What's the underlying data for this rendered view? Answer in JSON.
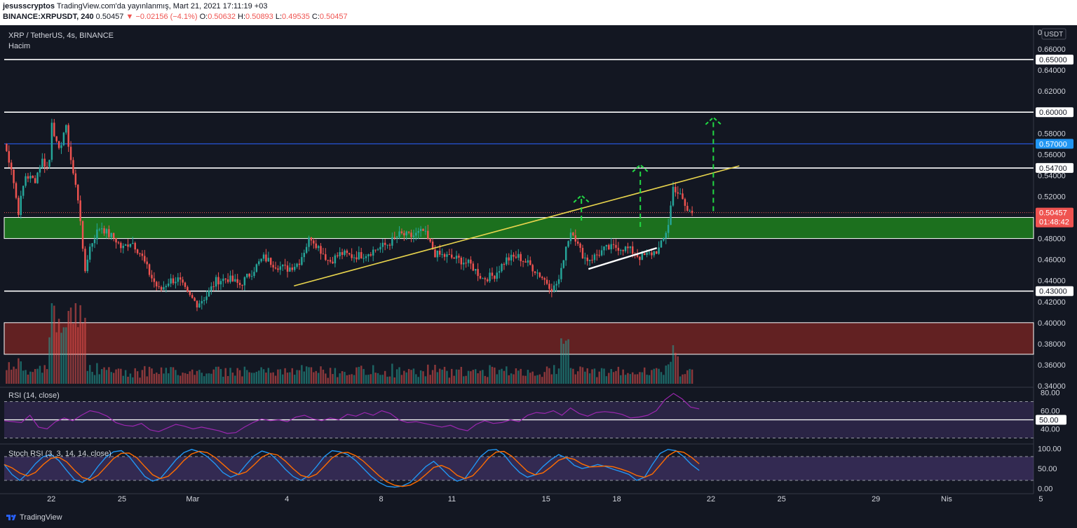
{
  "header": {
    "author": "jesusscryptos",
    "published": "TradingView.com'da yayınlanmış, Mart 21, 2021 17:11:19 +03",
    "symbol": "BINANCE:XRPUSDT, 240",
    "last": "0.50457",
    "arrow": "▼",
    "change": "−0.02156 (−4.1%)",
    "o_label": "O:",
    "o_value": "0.50632",
    "h_label": "H:",
    "h_value": "0.50893",
    "l_label": "L:",
    "l_value": "0.49535",
    "c_label": "C:",
    "c_value": "0.50457"
  },
  "legend": {
    "title": "XRP / TetherUS, 4s, BINANCE",
    "volume": "Hacim",
    "rsi": "RSI (14, close)",
    "stoch": "Stoch RSI (3, 3, 14, 14, close)"
  },
  "footer": {
    "brand": "TradingView"
  },
  "colors": {
    "up": "#26a69a",
    "down": "#ef5350",
    "trend": "#e8d44d",
    "target": "#21d943",
    "support_zone": "#1e7a1e",
    "resist_zone": "#6b2222",
    "blue_line": "#2962ff"
  },
  "chart_data": [
    {
      "type": "candlestick",
      "currency": "USDT",
      "ylim": [
        0.34,
        0.68
      ],
      "y_ticks": [
        "0.34000",
        "0.36000",
        "0.38000",
        "0.40000",
        "0.42000",
        "0.44000",
        "0.46000",
        "0.48000",
        "0.50000",
        "0.52000",
        "0.54000",
        "0.56000",
        "0.58000",
        "0.60000",
        "0.62000",
        "0.64000",
        "0.66000"
      ],
      "x_ticks": [
        {
          "label": "22",
          "day": 22
        },
        {
          "label": "25",
          "day": 25
        },
        {
          "label": "Mar",
          "day": 28
        },
        {
          "label": "4",
          "day": 32
        },
        {
          "label": "8",
          "day": 36
        },
        {
          "label": "11",
          "day": 39
        },
        {
          "label": "15",
          "day": 43
        },
        {
          "label": "18",
          "day": 46
        },
        {
          "label": "22",
          "day": 50
        },
        {
          "label": "25",
          "day": 53
        },
        {
          "label": "29",
          "day": 57
        },
        {
          "label": "Nis",
          "day": 60
        },
        {
          "label": "5",
          "day": 64
        }
      ],
      "horizontal_levels": [
        {
          "value": 0.65,
          "label": "0.65000",
          "color": "#ffffff"
        },
        {
          "value": 0.6,
          "label": "0.60000",
          "color": "#ffffff"
        },
        {
          "value": 0.57,
          "label": "0.57000",
          "color": "#2962ff"
        },
        {
          "value": 0.547,
          "label": "0.54700",
          "color": "#ffffff"
        },
        {
          "value": 0.43,
          "label": "0.43000",
          "color": "#ffffff"
        }
      ],
      "price_label": {
        "value": 0.50457,
        "label": "0.50457",
        "countdown": "01:48:42"
      },
      "support_zone": [
        0.48,
        0.5
      ],
      "resistance_zone": [
        0.37,
        0.4
      ],
      "trendline": {
        "from": [
          32.3,
          0.435
        ],
        "to": [
          51.2,
          0.549
        ]
      },
      "support_line": {
        "from": [
          44.8,
          0.451
        ],
        "to": [
          47.7,
          0.471
        ]
      },
      "target_arrows": [
        {
          "from": [
            44.5,
            0.497
          ],
          "to": [
            44.5,
            0.521
          ]
        },
        {
          "from": [
            47.0,
            0.491
          ],
          "to": [
            47.0,
            0.55
          ]
        },
        {
          "from": [
            50.1,
            0.506
          ],
          "to": [
            50.1,
            0.595
          ]
        }
      ],
      "keypoints": [
        [
          20.0,
          0.57
        ],
        [
          20.3,
          0.548
        ],
        [
          20.6,
          0.505
        ],
        [
          20.9,
          0.54
        ],
        [
          21.3,
          0.535
        ],
        [
          21.6,
          0.555
        ],
        [
          21.9,
          0.545
        ],
        [
          22.0,
          0.595
        ],
        [
          22.3,
          0.56
        ],
        [
          22.6,
          0.588
        ],
        [
          22.9,
          0.545
        ],
        [
          23.2,
          0.51
        ],
        [
          23.4,
          0.445
        ],
        [
          23.6,
          0.47
        ],
        [
          23.9,
          0.485
        ],
        [
          24.1,
          0.492
        ],
        [
          24.4,
          0.484
        ],
        [
          24.7,
          0.48
        ],
        [
          25.0,
          0.47
        ],
        [
          25.4,
          0.478
        ],
        [
          25.8,
          0.465
        ],
        [
          26.2,
          0.445
        ],
        [
          26.6,
          0.43
        ],
        [
          27.0,
          0.44
        ],
        [
          27.4,
          0.441
        ],
        [
          27.8,
          0.426
        ],
        [
          28.2,
          0.418
        ],
        [
          28.6,
          0.426
        ],
        [
          29.0,
          0.44
        ],
        [
          29.5,
          0.442
        ],
        [
          30.0,
          0.436
        ],
        [
          30.5,
          0.448
        ],
        [
          31.0,
          0.462
        ],
        [
          31.5,
          0.455
        ],
        [
          32.0,
          0.451
        ],
        [
          32.5,
          0.457
        ],
        [
          33.0,
          0.482
        ],
        [
          33.4,
          0.47
        ],
        [
          33.8,
          0.458
        ],
        [
          34.3,
          0.466
        ],
        [
          34.8,
          0.463
        ],
        [
          35.3,
          0.465
        ],
        [
          35.8,
          0.47
        ],
        [
          36.3,
          0.475
        ],
        [
          36.8,
          0.484
        ],
        [
          37.3,
          0.482
        ],
        [
          37.8,
          0.487
        ],
        [
          38.3,
          0.465
        ],
        [
          38.8,
          0.463
        ],
        [
          39.3,
          0.46
        ],
        [
          39.8,
          0.455
        ],
        [
          40.3,
          0.442
        ],
        [
          40.8,
          0.445
        ],
        [
          41.3,
          0.46
        ],
        [
          41.8,
          0.463
        ],
        [
          42.3,
          0.455
        ],
        [
          42.8,
          0.444
        ],
        [
          43.3,
          0.432
        ],
        [
          43.6,
          0.443
        ],
        [
          43.8,
          0.47
        ],
        [
          44.1,
          0.49
        ],
        [
          44.4,
          0.47
        ],
        [
          44.7,
          0.46
        ],
        [
          45.0,
          0.462
        ],
        [
          45.5,
          0.47
        ],
        [
          46.0,
          0.472
        ],
        [
          46.5,
          0.47
        ],
        [
          47.0,
          0.462
        ],
        [
          47.5,
          0.466
        ],
        [
          47.8,
          0.47
        ],
        [
          48.0,
          0.48
        ],
        [
          48.2,
          0.495
        ],
        [
          48.4,
          0.53
        ],
        [
          48.7,
          0.52
        ],
        [
          49.0,
          0.506
        ],
        [
          49.2,
          0.505
        ]
      ]
    },
    {
      "type": "line",
      "name": "RSI (14, close)",
      "ylim": [
        25,
        85
      ],
      "y_ticks": [
        "40.00",
        "60.00",
        "80.00"
      ],
      "bands": [
        30,
        70
      ],
      "level": {
        "value": 50,
        "label": "50.00"
      },
      "values": [
        49,
        48,
        47,
        55,
        42,
        40,
        48,
        52,
        49,
        55,
        60,
        58,
        54,
        47,
        44,
        43,
        46,
        39,
        37,
        41,
        45,
        43,
        40,
        42,
        40,
        38,
        35,
        36,
        42,
        47,
        51,
        49,
        50,
        48,
        53,
        55,
        51,
        49,
        52,
        50,
        56,
        54,
        58,
        55,
        60,
        57,
        50,
        47,
        48,
        46,
        44,
        42,
        44,
        40,
        38,
        45,
        49,
        46,
        47,
        50,
        48,
        55,
        58,
        57,
        60,
        55,
        63,
        57,
        54,
        58,
        59,
        58,
        56,
        52,
        53,
        55,
        60,
        72,
        79,
        73,
        64,
        62
      ]
    },
    {
      "type": "line",
      "name": "Stoch RSI (3, 3, 14, 14, close)",
      "ylim": [
        -10,
        110
      ],
      "y_ticks": [
        "0.00",
        "50.00",
        "100.00"
      ],
      "bands": [
        20,
        80
      ],
      "k": [
        60,
        35,
        20,
        38,
        62,
        80,
        85,
        70,
        45,
        22,
        15,
        28,
        55,
        78,
        92,
        95,
        80,
        55,
        30,
        18,
        25,
        48,
        72,
        90,
        98,
        92,
        80,
        62,
        40,
        28,
        36,
        60,
        82,
        94,
        88,
        70,
        48,
        30,
        20,
        32,
        55,
        80,
        95,
        92,
        85,
        70,
        50,
        30,
        15,
        5,
        3,
        6,
        15,
        35,
        55,
        68,
        50,
        30,
        18,
        25,
        52,
        80,
        96,
        98,
        85,
        60,
        40,
        28,
        34,
        55,
        72,
        85,
        76,
        58,
        50,
        54,
        60,
        55,
        48,
        42,
        35,
        20,
        28,
        60,
        88,
        98,
        95,
        80,
        60,
        45
      ]
    }
  ]
}
